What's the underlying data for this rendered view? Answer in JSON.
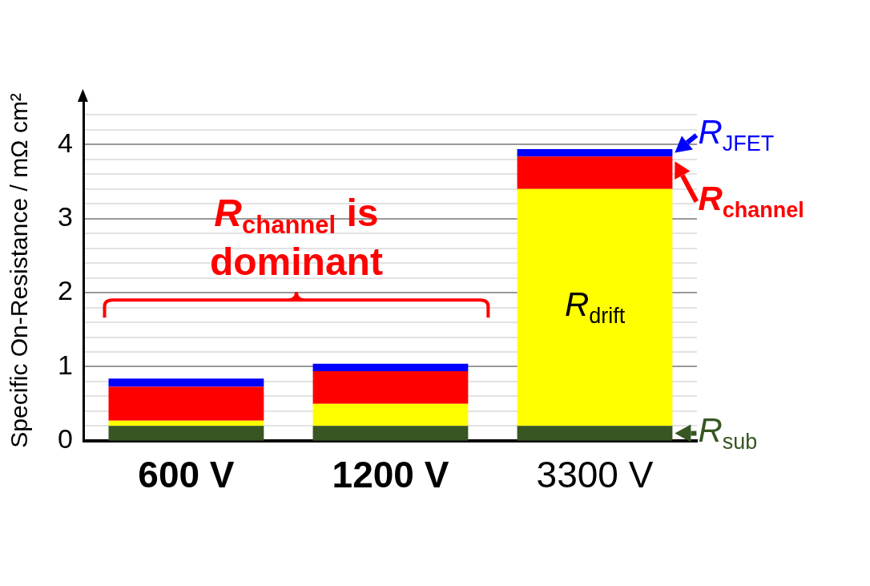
{
  "chart_data": {
    "type": "bar",
    "stacked": true,
    "ylabel": "Specific On-Resistance / mΩ cm²",
    "categories": [
      "600 V",
      "1200 V",
      "3300 V"
    ],
    "series": [
      {
        "name": "R$_{sub}$",
        "color": "#375623",
        "values": [
          0.2,
          0.2,
          0.2
        ]
      },
      {
        "name": "R$_{drift}$",
        "color": "#ffff00",
        "values": [
          0.07,
          0.3,
          3.2
        ]
      },
      {
        "name": "R$_{channel}$",
        "color": "#ff0000",
        "values": [
          0.46,
          0.44,
          0.44
        ]
      },
      {
        "name": "R$_{JFET}$",
        "color": "#0000ff",
        "values": [
          0.11,
          0.1,
          0.1
        ]
      }
    ],
    "ylim": [
      0,
      4.6
    ],
    "yticks": [
      0,
      {
        "value": 0.2,
        "label": null
      },
      {
        "value": 0.4,
        "label": null
      },
      {
        "value": 0.6,
        "label": null
      },
      {
        "value": 0.8,
        "label": null
      },
      1,
      {
        "value": 1.2,
        "label": null
      },
      {
        "value": 1.4,
        "label": null
      },
      {
        "value": 1.6,
        "label": null
      },
      {
        "value": 1.8,
        "label": null
      },
      2,
      {
        "value": 2.2,
        "label": null
      },
      {
        "value": 2.4,
        "label": null
      },
      {
        "value": 2.6,
        "label": null
      },
      {
        "value": 2.8,
        "label": null
      },
      3,
      {
        "value": 3.2,
        "label": null
      },
      {
        "value": 3.4,
        "label": null
      },
      {
        "value": 3.6,
        "label": null
      },
      {
        "value": 3.8,
        "label": null
      },
      4,
      {
        "value": 4.2,
        "label": null
      },
      {
        "value": 4.4,
        "label": null
      }
    ],
    "grid": "y",
    "legend": "right",
    "annotations": [
      "R$_{channel}$ is dominant"
    ]
  }
}
